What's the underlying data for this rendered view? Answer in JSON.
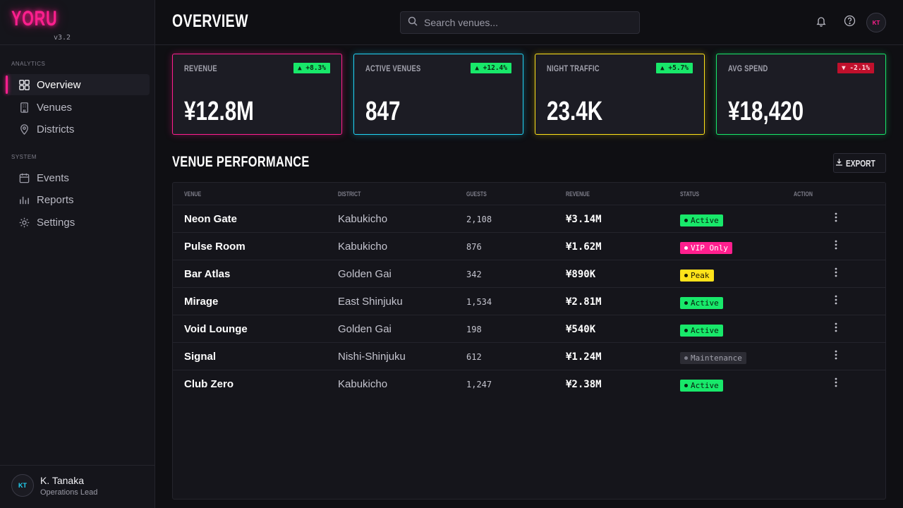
{
  "brand": {
    "logo": "YORU",
    "version": "v3.2"
  },
  "sidebar": {
    "sections": [
      {
        "label": "ANALYTICS",
        "items": [
          {
            "label": "Overview",
            "icon": "grid-icon",
            "active": true
          },
          {
            "label": "Venues",
            "icon": "building-icon"
          },
          {
            "label": "Districts",
            "icon": "map-pin-icon"
          }
        ]
      },
      {
        "label": "SYSTEM",
        "items": [
          {
            "label": "Events",
            "icon": "calendar-icon"
          },
          {
            "label": "Reports",
            "icon": "bar-chart-icon"
          },
          {
            "label": "Settings",
            "icon": "gear-icon"
          }
        ]
      }
    ],
    "user": {
      "initials": "KT",
      "name": "K. Tanaka",
      "role": "Operations Lead"
    }
  },
  "header": {
    "title": "OVERVIEW",
    "search_placeholder": "Search venues...",
    "avatar_initials": "KT"
  },
  "kpis": [
    {
      "label": "REVENUE",
      "value": "¥12.8M",
      "delta": "▲ +8.3%",
      "trend": "up",
      "accent": "#ff1f8e"
    },
    {
      "label": "ACTIVE VENUES",
      "value": "847",
      "delta": "▲ +12.4%",
      "trend": "up",
      "accent": "#21d4f5"
    },
    {
      "label": "NIGHT TRAFFIC",
      "value": "23.4K",
      "delta": "▲ +5.7%",
      "trend": "up",
      "accent": "#ffe21a"
    },
    {
      "label": "AVG SPEND",
      "value": "¥18,420",
      "delta": "▼ -2.1%",
      "trend": "down",
      "accent": "#18e86a"
    }
  ],
  "performance": {
    "title": "VENUE PERFORMANCE",
    "export_label": "EXPORT",
    "columns": [
      "VENUE",
      "DISTRICT",
      "GUESTS",
      "REVENUE",
      "STATUS",
      "ACTION"
    ],
    "rows": [
      {
        "venue": "Neon Gate",
        "district": "Kabukicho",
        "guests": "2,108",
        "revenue": "¥3.14M",
        "status": "Active",
        "status_kind": "active"
      },
      {
        "venue": "Pulse Room",
        "district": "Kabukicho",
        "guests": "876",
        "revenue": "¥1.62M",
        "status": "VIP Only",
        "status_kind": "vip"
      },
      {
        "venue": "Bar Atlas",
        "district": "Golden Gai",
        "guests": "342",
        "revenue": "¥890K",
        "status": "Peak",
        "status_kind": "peak"
      },
      {
        "venue": "Mirage",
        "district": "East Shinjuku",
        "guests": "1,534",
        "revenue": "¥2.81M",
        "status": "Active",
        "status_kind": "active"
      },
      {
        "venue": "Void Lounge",
        "district": "Golden Gai",
        "guests": "198",
        "revenue": "¥540K",
        "status": "Active",
        "status_kind": "active"
      },
      {
        "venue": "Signal",
        "district": "Nishi-Shinjuku",
        "guests": "612",
        "revenue": "¥1.24M",
        "status": "Maintenance",
        "status_kind": "maint"
      },
      {
        "venue": "Club Zero",
        "district": "Kabukicho",
        "guests": "1,247",
        "revenue": "¥2.38M",
        "status": "Active",
        "status_kind": "active"
      }
    ]
  }
}
